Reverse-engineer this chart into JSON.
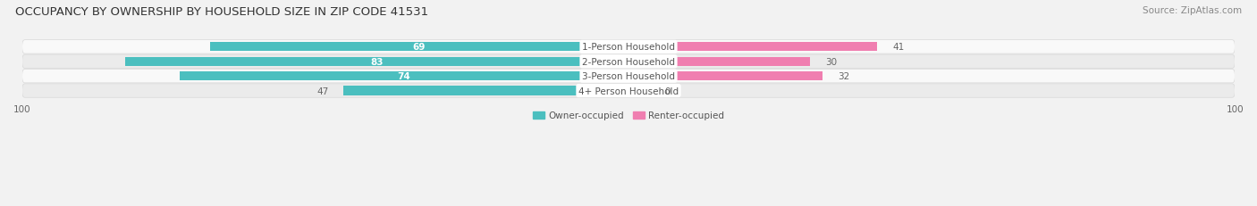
{
  "title": "OCCUPANCY BY OWNERSHIP BY HOUSEHOLD SIZE IN ZIP CODE 41531",
  "source": "Source: ZipAtlas.com",
  "categories": [
    "1-Person Household",
    "2-Person Household",
    "3-Person Household",
    "4+ Person Household"
  ],
  "owner_values": [
    69,
    83,
    74,
    47
  ],
  "renter_values": [
    41,
    30,
    32,
    0
  ],
  "owner_color": "#4BBFBF",
  "renter_color": "#F07EB0",
  "renter_color_light": "#F7B8D4",
  "axis_max": 100,
  "background_color": "#f2f2f2",
  "row_color_odd": "#f9f9f9",
  "row_color_even": "#ebebeb",
  "title_fontsize": 9.5,
  "label_fontsize": 7.5,
  "value_fontsize": 7.5,
  "source_fontsize": 7.5,
  "axis_label_fontsize": 7.5,
  "legend_fontsize": 7.5,
  "bar_height": 0.62
}
